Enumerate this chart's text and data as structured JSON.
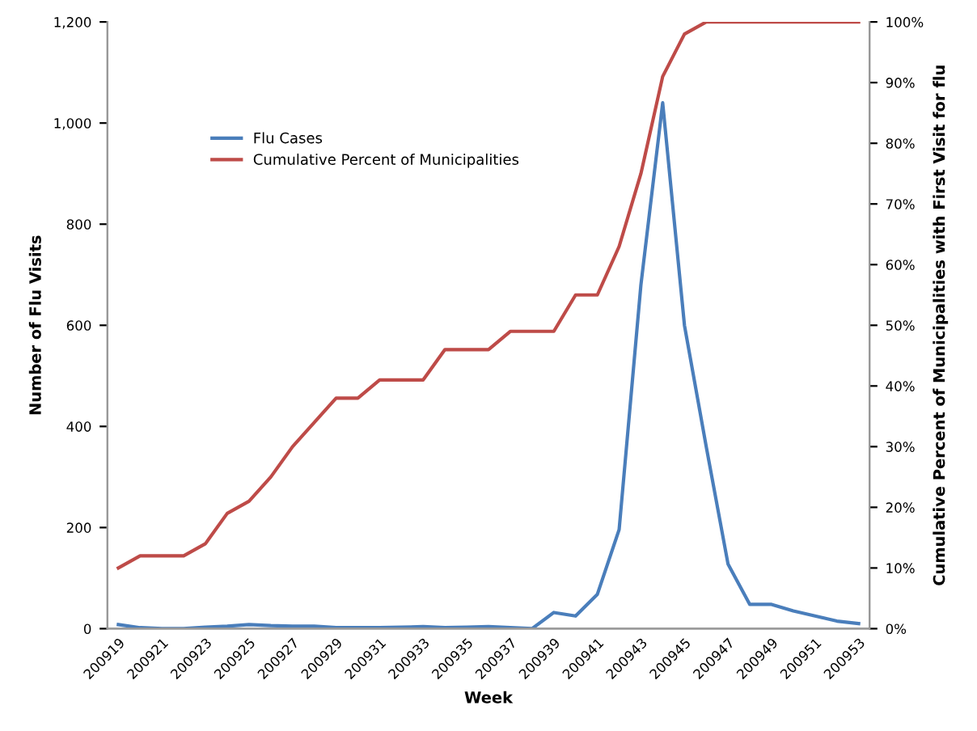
{
  "chart_data": {
    "type": "line",
    "xlabel": "Week",
    "ylabel": "Number of Flu Visits",
    "y2label": "Cumulative Percent of Municipalities with First Visit for flu",
    "categories": [
      "200919",
      null,
      "200921",
      null,
      "200923",
      null,
      "200925",
      null,
      "200927",
      null,
      "200929",
      null,
      "200931",
      null,
      "200933",
      null,
      "200935",
      null,
      "200937",
      null,
      "200939",
      null,
      "200941",
      null,
      "200943",
      null,
      "200945",
      null,
      "200947",
      null,
      "200949",
      null,
      "200951",
      null,
      "200953"
    ],
    "series": [
      {
        "name": "Flu Cases",
        "color": "#4a7ebb",
        "values": [
          8,
          2,
          0,
          0,
          3,
          5,
          8,
          6,
          5,
          5,
          2,
          2,
          2,
          3,
          4,
          2,
          3,
          4,
          2,
          0,
          32,
          25,
          68,
          196,
          680,
          1040,
          600,
          360,
          128,
          48,
          48,
          35,
          25,
          15,
          10
        ]
      },
      {
        "name": "Cumulative Percent of Municipalities",
        "color": "#be4b48",
        "axis": "y2",
        "values": [
          10,
          12,
          12,
          12,
          14,
          19,
          21,
          25,
          30,
          34,
          38,
          38,
          41,
          41,
          41,
          46,
          46,
          46,
          49,
          49,
          49,
          55,
          55,
          63,
          75,
          91,
          98,
          100,
          100,
          100,
          100,
          100,
          100,
          100,
          100
        ]
      }
    ],
    "ylim": [
      0,
      1200
    ],
    "yticks": [
      0,
      200,
      400,
      600,
      800,
      {
        "value": 1000,
        "label": "1,000"
      },
      {
        "value": 1200,
        "label": "1,200"
      }
    ],
    "y2lim": [
      0,
      100
    ],
    "y2ticks": [
      {
        "value": 0,
        "label": "0%"
      },
      {
        "value": 10,
        "label": "10%"
      },
      {
        "value": 20,
        "label": "20%"
      },
      {
        "value": 30,
        "label": "30%"
      },
      {
        "value": 40,
        "label": "40%"
      },
      {
        "value": 50,
        "label": "50%"
      },
      {
        "value": 60,
        "label": "60%"
      },
      {
        "value": 70,
        "label": "70%"
      },
      {
        "value": 80,
        "label": "80%"
      },
      {
        "value": 90,
        "label": "90%"
      },
      {
        "value": 100,
        "label": "100%"
      }
    ],
    "legend": "top left",
    "grid": false,
    "marker": "none",
    "line_style": "solid"
  }
}
